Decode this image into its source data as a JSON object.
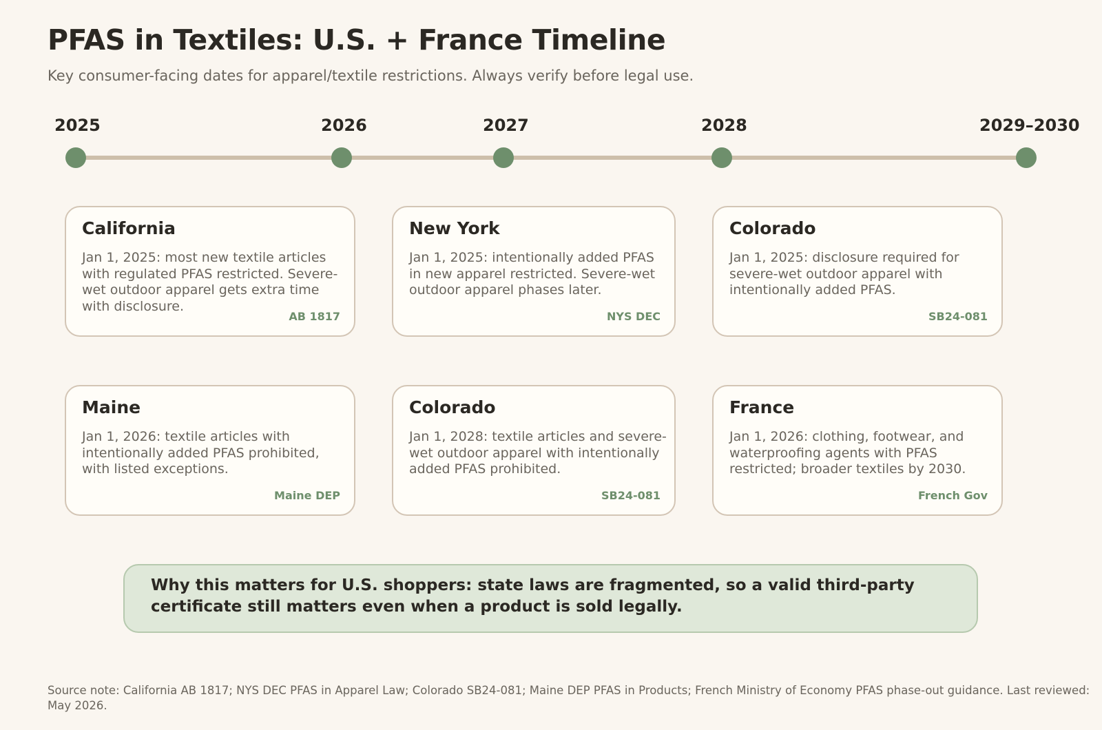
{
  "title": "PFAS in Textiles: U.S. + France Timeline",
  "subtitle": "Key consumer-facing dates for apparel/textile restrictions. Always verify before legal use.",
  "timeline": {
    "years": [
      "2025",
      "2026",
      "2027",
      "2028",
      "2029–2030"
    ]
  },
  "cards": [
    {
      "title": "California",
      "body": "Jan 1, 2025: most new textile articles with regulated PFAS restricted. Severe-wet outdoor apparel gets extra time with disclosure.",
      "tag": "AB 1817"
    },
    {
      "title": "New York",
      "body": "Jan 1, 2025: intentionally added PFAS in new apparel restricted. Severe-wet outdoor apparel phases later.",
      "tag": "NYS DEC"
    },
    {
      "title": "Colorado",
      "body": "Jan 1, 2025: disclosure required for severe-wet outdoor apparel with intentionally added PFAS.",
      "tag": "SB24-081"
    },
    {
      "title": "Maine",
      "body": "Jan 1, 2026: textile articles with intentionally added PFAS prohibited, with listed exceptions.",
      "tag": "Maine DEP"
    },
    {
      "title": "Colorado",
      "body": "Jan 1, 2028: textile articles and severe-wet outdoor apparel with intentionally added PFAS prohibited.",
      "tag": "SB24-081"
    },
    {
      "title": "France",
      "body": "Jan 1, 2026: clothing, footwear, and waterproofing agents with PFAS restricted; broader textiles by 2030.",
      "tag": "French Gov"
    }
  ],
  "callout": "Why this matters for U.S. shoppers: state laws are fragmented, so a valid third-party certificate still matters even when a product is sold legally.",
  "source_note": "Source note: California AB 1817; NYS DEC PFAS in Apparel Law; Colorado SB24-081; Maine DEP PFAS in Products; French Ministry of Economy PFAS phase-out guidance. Last reviewed: May 2026.",
  "colors": {
    "background": "#faf6f0",
    "accent_green": "#6e8f6c",
    "track": "#cdbfaa",
    "callout_bg": "#dfe8d9"
  }
}
